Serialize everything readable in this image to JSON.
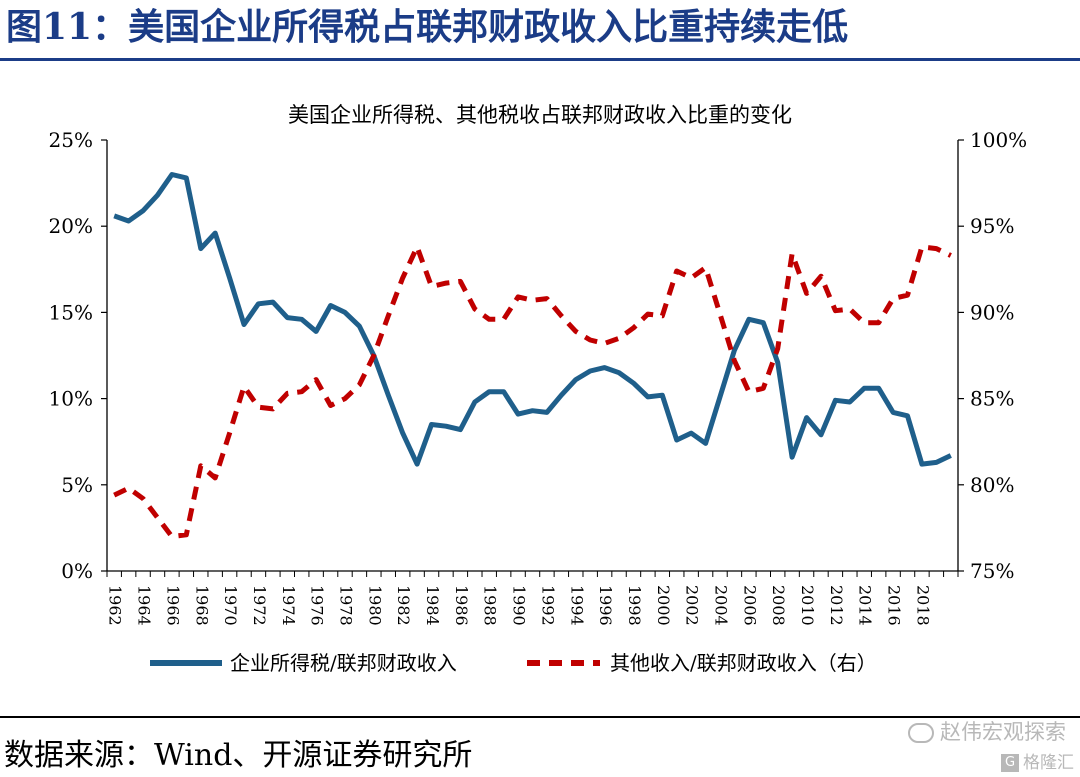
{
  "figure": {
    "title": "图11：美国企业所得税占联邦财政收入比重持续走低",
    "source": "数据来源：Wind、开源证券研究所",
    "watermark": "赵伟宏观探索",
    "watermark_sub": "格隆汇",
    "watermark_sub_icon": "G"
  },
  "chart_data": {
    "type": "line",
    "title": "美国企业所得税、其他税收占联邦财政收入比重的变化",
    "x": [
      1962,
      1963,
      1964,
      1965,
      1966,
      1967,
      1968,
      1969,
      1970,
      1971,
      1972,
      1973,
      1974,
      1975,
      1976,
      1977,
      1978,
      1979,
      1980,
      1981,
      1982,
      1983,
      1984,
      1985,
      1986,
      1987,
      1988,
      1989,
      1990,
      1991,
      1992,
      1993,
      1994,
      1995,
      1996,
      1997,
      1998,
      1999,
      2000,
      2001,
      2002,
      2003,
      2004,
      2005,
      2006,
      2007,
      2008,
      2009,
      2010,
      2011,
      2012,
      2013,
      2014,
      2015,
      2016,
      2017,
      2018,
      2019,
      2020
    ],
    "x_tick_labels": [
      "1962",
      "1964",
      "1966",
      "1968",
      "1970",
      "1972",
      "1974",
      "1976",
      "1978",
      "1980",
      "1982",
      "1984",
      "1986",
      "1988",
      "1990",
      "1992",
      "1994",
      "1996",
      "1998",
      "2000",
      "2002",
      "2004",
      "2006",
      "2008",
      "2010",
      "2012",
      "2014",
      "2016",
      "2018"
    ],
    "y_left": {
      "ylim": [
        0,
        25
      ],
      "ticks": [
        "0%",
        "5%",
        "10%",
        "15%",
        "20%",
        "25%"
      ],
      "tick_values": [
        0,
        5,
        10,
        15,
        20,
        25
      ]
    },
    "y_right": {
      "ylim": [
        75,
        100
      ],
      "ticks": [
        "75%",
        "80%",
        "85%",
        "90%",
        "95%",
        "100%"
      ],
      "tick_values": [
        75,
        80,
        85,
        90,
        95,
        100
      ]
    },
    "series": [
      {
        "name": "企业所得税/联邦财政收入",
        "axis": "left",
        "color": "#1f5f8b",
        "style": "solid",
        "values": [
          20.6,
          20.3,
          20.9,
          21.8,
          23.0,
          22.8,
          18.7,
          19.6,
          17.0,
          14.3,
          15.5,
          15.6,
          14.7,
          14.6,
          13.9,
          15.4,
          15.0,
          14.2,
          12.5,
          10.2,
          8.0,
          6.2,
          8.5,
          8.4,
          8.2,
          9.8,
          10.4,
          10.4,
          9.1,
          9.3,
          9.2,
          10.2,
          11.1,
          11.6,
          11.8,
          11.5,
          10.9,
          10.1,
          10.2,
          7.6,
          8.0,
          7.4,
          10.1,
          12.8,
          14.6,
          14.4,
          12.1,
          6.6,
          8.9,
          7.9,
          9.9,
          9.8,
          10.6,
          10.6,
          9.2,
          9.0,
          6.2,
          6.3,
          6.7
        ]
      },
      {
        "name": "其他收入/联邦财政收入（右）",
        "axis": "right",
        "color": "#c00000",
        "style": "dashed",
        "values": [
          79.4,
          79.8,
          79.2,
          78.1,
          77.0,
          77.1,
          81.1,
          80.4,
          83.0,
          85.7,
          84.5,
          84.4,
          85.3,
          85.4,
          86.1,
          84.6,
          85.0,
          85.8,
          87.5,
          89.8,
          92.0,
          93.8,
          91.5,
          91.7,
          91.8,
          90.2,
          89.6,
          89.6,
          90.9,
          90.7,
          90.8,
          89.8,
          88.9,
          88.4,
          88.2,
          88.5,
          89.1,
          89.9,
          89.8,
          92.4,
          92.0,
          92.6,
          89.9,
          87.2,
          85.4,
          85.6,
          87.9,
          93.4,
          91.1,
          92.1,
          90.1,
          90.2,
          89.4,
          89.4,
          90.8,
          91.0,
          93.8,
          93.7,
          93.3
        ]
      }
    ],
    "legend": "bottom-center",
    "grid": false
  }
}
